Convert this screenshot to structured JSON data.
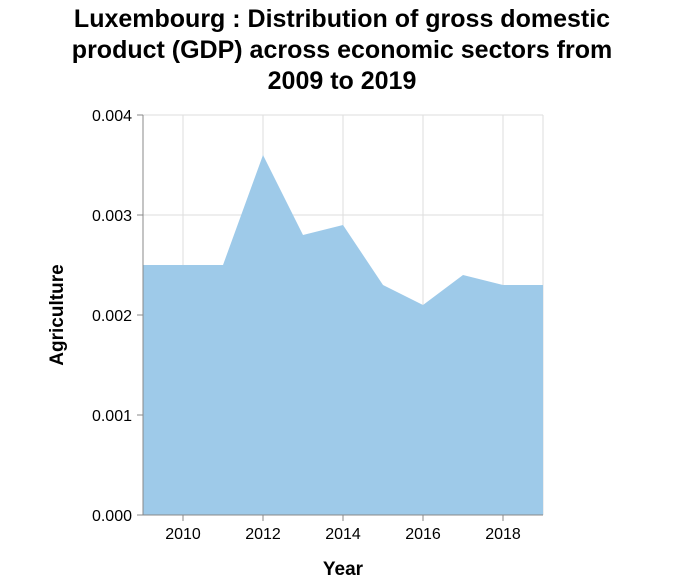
{
  "chart_data": {
    "type": "area",
    "title_lines": [
      "Luxembourg : Distribution of gross domestic",
      "product (GDP) across economic sectors from",
      "2009 to 2019"
    ],
    "xlabel": "Year",
    "ylabel": "Agriculture",
    "x": [
      2009,
      2010,
      2011,
      2012,
      2013,
      2014,
      2015,
      2016,
      2017,
      2018,
      2019
    ],
    "values": [
      0.0025,
      0.0025,
      0.0025,
      0.0036,
      0.0028,
      0.0029,
      0.0023,
      0.0021,
      0.0024,
      0.0023,
      0.0023
    ],
    "xlim": [
      2009,
      2019
    ],
    "ylim": [
      0,
      0.004
    ],
    "x_ticks": [
      2010,
      2012,
      2014,
      2016,
      2018
    ],
    "x_tick_labels": [
      "2010",
      "2012",
      "2014",
      "2016",
      "2018"
    ],
    "y_ticks": [
      0,
      0.001,
      0.002,
      0.003,
      0.004
    ],
    "y_tick_labels": [
      "0.000",
      "0.001",
      "0.002",
      "0.003",
      "0.004"
    ],
    "grid": true,
    "fill_color": "#9ecae9",
    "grid_color": "#dddddd",
    "axis_color": "#888888"
  }
}
